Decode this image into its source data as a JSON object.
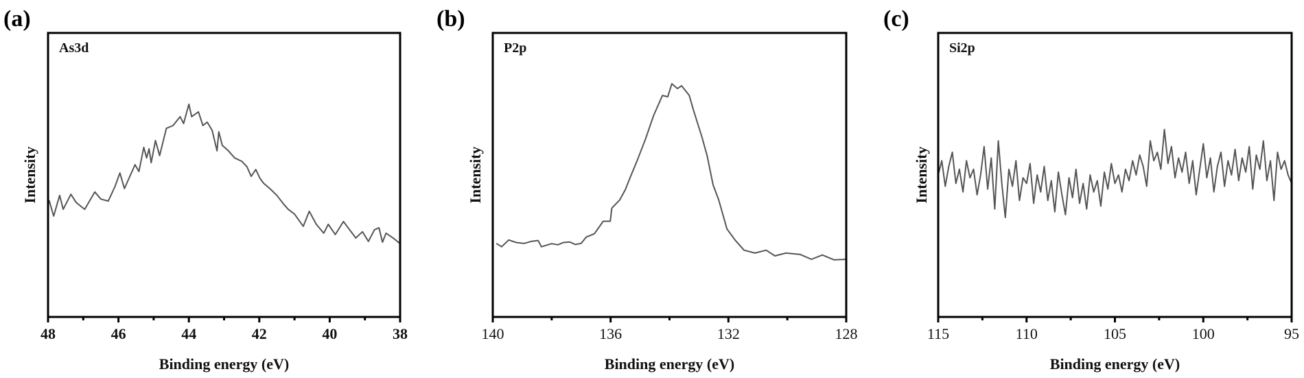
{
  "chart_data": [
    {
      "type": "line",
      "panel_label": "(a)",
      "title": "As3d",
      "xlabel": "Binding energy (eV)",
      "ylabel": "Intensity",
      "xlim": [
        48,
        38
      ],
      "ylim": [
        0,
        1
      ],
      "xticks": [
        "48",
        "46",
        "44",
        "42",
        "40",
        "38"
      ],
      "xtick_values": [
        48,
        46,
        44,
        42,
        40,
        38
      ],
      "grid": false,
      "line_color": "#555555",
      "series": [
        {
          "name": "As3d",
          "points": [
            [
              47.97,
              0.411
            ],
            [
              47.84,
              0.355
            ],
            [
              47.67,
              0.428
            ],
            [
              47.57,
              0.379
            ],
            [
              47.35,
              0.432
            ],
            [
              47.2,
              0.403
            ],
            [
              46.96,
              0.379
            ],
            [
              46.67,
              0.44
            ],
            [
              46.5,
              0.415
            ],
            [
              46.29,
              0.408
            ],
            [
              46.1,
              0.459
            ],
            [
              45.96,
              0.507
            ],
            [
              45.83,
              0.452
            ],
            [
              45.53,
              0.536
            ],
            [
              45.42,
              0.512
            ],
            [
              45.28,
              0.597
            ],
            [
              45.2,
              0.56
            ],
            [
              45.13,
              0.592
            ],
            [
              45.07,
              0.543
            ],
            [
              44.95,
              0.621
            ],
            [
              44.83,
              0.568
            ],
            [
              44.64,
              0.664
            ],
            [
              44.45,
              0.674
            ],
            [
              44.25,
              0.705
            ],
            [
              44.15,
              0.681
            ],
            [
              44.0,
              0.749
            ],
            [
              43.92,
              0.705
            ],
            [
              43.73,
              0.722
            ],
            [
              43.6,
              0.674
            ],
            [
              43.48,
              0.686
            ],
            [
              43.34,
              0.657
            ],
            [
              43.2,
              0.585
            ],
            [
              43.15,
              0.652
            ],
            [
              43.05,
              0.604
            ],
            [
              42.88,
              0.585
            ],
            [
              42.7,
              0.56
            ],
            [
              42.5,
              0.548
            ],
            [
              42.35,
              0.529
            ],
            [
              42.23,
              0.495
            ],
            [
              42.1,
              0.519
            ],
            [
              41.98,
              0.488
            ],
            [
              41.88,
              0.471
            ],
            [
              41.7,
              0.452
            ],
            [
              41.5,
              0.428
            ],
            [
              41.3,
              0.396
            ],
            [
              41.18,
              0.379
            ],
            [
              41.0,
              0.362
            ],
            [
              40.75,
              0.319
            ],
            [
              40.58,
              0.372
            ],
            [
              40.38,
              0.326
            ],
            [
              40.17,
              0.295
            ],
            [
              40.04,
              0.326
            ],
            [
              39.84,
              0.29
            ],
            [
              39.61,
              0.336
            ],
            [
              39.26,
              0.278
            ],
            [
              39.07,
              0.3
            ],
            [
              38.9,
              0.266
            ],
            [
              38.73,
              0.307
            ],
            [
              38.6,
              0.314
            ],
            [
              38.5,
              0.263
            ],
            [
              38.4,
              0.295
            ],
            [
              38.2,
              0.278
            ],
            [
              38.0,
              0.258
            ]
          ]
        }
      ]
    },
    {
      "type": "line",
      "panel_label": "(b)",
      "title": "P2p",
      "xlabel": "Binding energy (eV)",
      "ylabel": "Intensity",
      "xlim": [
        140,
        128
      ],
      "ylim": [
        0,
        1
      ],
      "xticks": [
        "140",
        "136",
        "132",
        "128"
      ],
      "xtick_values": [
        140,
        136,
        132,
        128
      ],
      "grid": false,
      "line_color": "#555555",
      "series": [
        {
          "name": "P2p",
          "points": [
            [
              139.88,
              0.259
            ],
            [
              139.7,
              0.247
            ],
            [
              139.46,
              0.271
            ],
            [
              139.2,
              0.262
            ],
            [
              138.93,
              0.259
            ],
            [
              138.7,
              0.266
            ],
            [
              138.46,
              0.269
            ],
            [
              138.35,
              0.247
            ],
            [
              138.0,
              0.258
            ],
            [
              137.79,
              0.254
            ],
            [
              137.6,
              0.262
            ],
            [
              137.39,
              0.264
            ],
            [
              137.2,
              0.255
            ],
            [
              137.0,
              0.259
            ],
            [
              136.83,
              0.281
            ],
            [
              136.55,
              0.293
            ],
            [
              136.25,
              0.337
            ],
            [
              136.01,
              0.337
            ],
            [
              135.96,
              0.383
            ],
            [
              135.69,
              0.412
            ],
            [
              135.5,
              0.448
            ],
            [
              135.3,
              0.5
            ],
            [
              135.1,
              0.55
            ],
            [
              134.82,
              0.625
            ],
            [
              134.54,
              0.709
            ],
            [
              134.24,
              0.78
            ],
            [
              134.06,
              0.775
            ],
            [
              133.92,
              0.821
            ],
            [
              133.73,
              0.804
            ],
            [
              133.59,
              0.814
            ],
            [
              133.33,
              0.78
            ],
            [
              133.19,
              0.729
            ],
            [
              132.9,
              0.634
            ],
            [
              132.72,
              0.567
            ],
            [
              132.52,
              0.465
            ],
            [
              132.33,
              0.412
            ],
            [
              132.05,
              0.31
            ],
            [
              131.76,
              0.269
            ],
            [
              131.47,
              0.235
            ],
            [
              131.1,
              0.225
            ],
            [
              130.72,
              0.235
            ],
            [
              130.42,
              0.215
            ],
            [
              130.05,
              0.225
            ],
            [
              129.56,
              0.22
            ],
            [
              129.18,
              0.203
            ],
            [
              128.81,
              0.218
            ],
            [
              128.41,
              0.201
            ],
            [
              128.0,
              0.203
            ]
          ]
        }
      ]
    },
    {
      "type": "line",
      "panel_label": "(c)",
      "title": "Si2p",
      "xlabel": "Binding energy (eV)",
      "ylabel": "Intensity",
      "xlim": [
        115,
        95
      ],
      "ylim": [
        0,
        1
      ],
      "xticks": [
        "115",
        "110",
        "105",
        "100",
        "95"
      ],
      "xtick_values": [
        115,
        110,
        105,
        100,
        95
      ],
      "grid": false,
      "line_color": "#555555",
      "series": [
        {
          "name": "Si2p",
          "points": [
            [
              115.0,
              0.5
            ],
            [
              114.8,
              0.55
            ],
            [
              114.6,
              0.46
            ],
            [
              114.4,
              0.53
            ],
            [
              114.2,
              0.58
            ],
            [
              114.0,
              0.47
            ],
            [
              113.8,
              0.52
            ],
            [
              113.6,
              0.44
            ],
            [
              113.4,
              0.55
            ],
            [
              113.2,
              0.49
            ],
            [
              113.0,
              0.52
            ],
            [
              112.8,
              0.43
            ],
            [
              112.6,
              0.5
            ],
            [
              112.4,
              0.6
            ],
            [
              112.2,
              0.45
            ],
            [
              112.0,
              0.56
            ],
            [
              111.8,
              0.38
            ],
            [
              111.6,
              0.62
            ],
            [
              111.4,
              0.47
            ],
            [
              111.2,
              0.35
            ],
            [
              111.0,
              0.52
            ],
            [
              110.8,
              0.46
            ],
            [
              110.6,
              0.55
            ],
            [
              110.4,
              0.41
            ],
            [
              110.2,
              0.49
            ],
            [
              110.0,
              0.47
            ],
            [
              109.8,
              0.54
            ],
            [
              109.6,
              0.4
            ],
            [
              109.4,
              0.5
            ],
            [
              109.2,
              0.44
            ],
            [
              109.0,
              0.53
            ],
            [
              108.8,
              0.41
            ],
            [
              108.6,
              0.48
            ],
            [
              108.4,
              0.37
            ],
            [
              108.2,
              0.51
            ],
            [
              108.0,
              0.43
            ],
            [
              107.8,
              0.36
            ],
            [
              107.6,
              0.49
            ],
            [
              107.4,
              0.42
            ],
            [
              107.2,
              0.52
            ],
            [
              107.0,
              0.4
            ],
            [
              106.8,
              0.47
            ],
            [
              106.6,
              0.38
            ],
            [
              106.4,
              0.5
            ],
            [
              106.2,
              0.44
            ],
            [
              106.0,
              0.48
            ],
            [
              105.8,
              0.39
            ],
            [
              105.6,
              0.51
            ],
            [
              105.4,
              0.45
            ],
            [
              105.2,
              0.54
            ],
            [
              105.0,
              0.47
            ],
            [
              104.8,
              0.5
            ],
            [
              104.6,
              0.44
            ],
            [
              104.4,
              0.52
            ],
            [
              104.2,
              0.48
            ],
            [
              104.0,
              0.55
            ],
            [
              103.8,
              0.5
            ],
            [
              103.6,
              0.57
            ],
            [
              103.4,
              0.53
            ],
            [
              103.2,
              0.46
            ],
            [
              103.0,
              0.62
            ],
            [
              102.8,
              0.55
            ],
            [
              102.6,
              0.58
            ],
            [
              102.4,
              0.52
            ],
            [
              102.2,
              0.66
            ],
            [
              102.0,
              0.54
            ],
            [
              101.8,
              0.6
            ],
            [
              101.6,
              0.49
            ],
            [
              101.4,
              0.56
            ],
            [
              101.2,
              0.51
            ],
            [
              101.0,
              0.58
            ],
            [
              100.8,
              0.47
            ],
            [
              100.6,
              0.55
            ],
            [
              100.4,
              0.43
            ],
            [
              100.2,
              0.52
            ],
            [
              100.0,
              0.61
            ],
            [
              99.8,
              0.49
            ],
            [
              99.6,
              0.56
            ],
            [
              99.4,
              0.44
            ],
            [
              99.2,
              0.53
            ],
            [
              99.0,
              0.58
            ],
            [
              98.8,
              0.46
            ],
            [
              98.6,
              0.55
            ],
            [
              98.4,
              0.5
            ],
            [
              98.2,
              0.59
            ],
            [
              98.0,
              0.48
            ],
            [
              97.8,
              0.56
            ],
            [
              97.6,
              0.51
            ],
            [
              97.4,
              0.6
            ],
            [
              97.2,
              0.45
            ],
            [
              97.0,
              0.57
            ],
            [
              96.8,
              0.52
            ],
            [
              96.6,
              0.62
            ],
            [
              96.4,
              0.48
            ],
            [
              96.2,
              0.55
            ],
            [
              96.0,
              0.41
            ],
            [
              95.8,
              0.58
            ],
            [
              95.6,
              0.52
            ],
            [
              95.4,
              0.55
            ],
            [
              95.2,
              0.5
            ],
            [
              95.0,
              0.47
            ]
          ]
        }
      ]
    }
  ]
}
